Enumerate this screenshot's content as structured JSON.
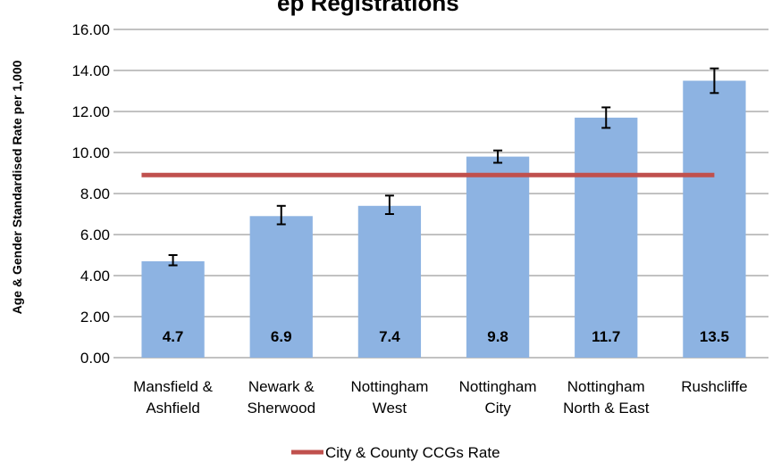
{
  "chart_data": {
    "type": "bar",
    "title": "ep Registrations",
    "ylabel": "Age & Gender Standardised Rate per 1,000",
    "categories": [
      [
        "Mansfield &",
        "Ashfield"
      ],
      [
        "Newark &",
        "Sherwood"
      ],
      [
        "Nottingham",
        "West"
      ],
      [
        "Nottingham",
        "City"
      ],
      [
        "Nottingham",
        "North & East"
      ],
      [
        "Rushcliffe"
      ]
    ],
    "values": [
      4.7,
      6.9,
      7.4,
      9.8,
      11.7,
      13.5
    ],
    "data_labels": [
      "4.7",
      "6.9",
      "7.4",
      "9.8",
      "11.7",
      "13.5"
    ],
    "error_low": [
      4.5,
      6.5,
      7.0,
      9.5,
      11.2,
      12.9
    ],
    "error_high": [
      5.0,
      7.4,
      7.9,
      10.1,
      12.2,
      14.1
    ],
    "reference_line": {
      "name": "City & County CCGs Rate",
      "value": 8.9,
      "color": "#c0504d"
    },
    "ylim": [
      0,
      16
    ],
    "yticks": [
      "0.00",
      "2.00",
      "4.00",
      "6.00",
      "8.00",
      "10.00",
      "12.00",
      "14.00",
      "16.00"
    ],
    "grid": true,
    "legend_position": "bottom",
    "colors": {
      "bar": "#8db3e2",
      "gridline": "#868686",
      "error_bar": "#000000"
    }
  }
}
